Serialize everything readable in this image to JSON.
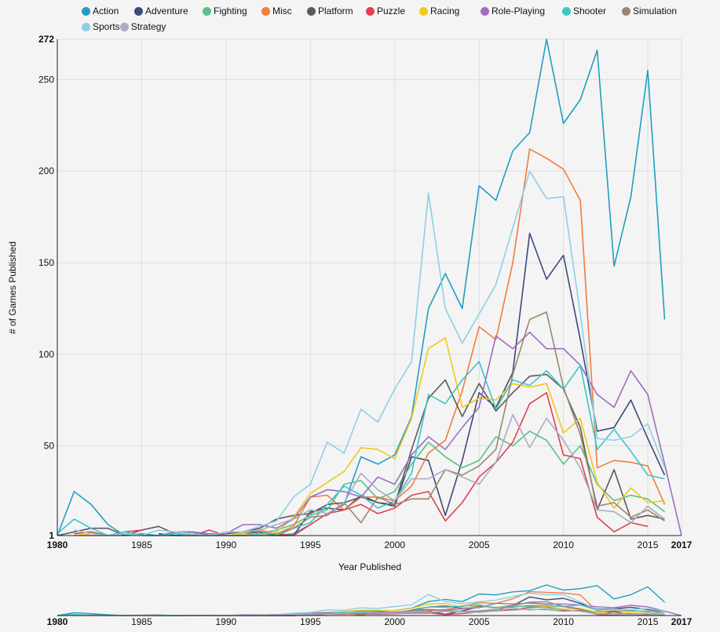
{
  "chart_data": {
    "type": "line",
    "title": "",
    "xlabel": "Year Published",
    "ylabel": "# of Games Published",
    "xlim": [
      1980,
      2017
    ],
    "ylim": [
      1,
      272
    ],
    "x_ticks": [
      1980,
      1985,
      1990,
      1995,
      2000,
      2005,
      2010,
      2015,
      2017
    ],
    "y_ticks": [
      1,
      50,
      100,
      150,
      200,
      250,
      272
    ],
    "grid": true,
    "legend_position": "top",
    "x": [
      1980,
      1981,
      1982,
      1983,
      1984,
      1985,
      1986,
      1987,
      1988,
      1989,
      1990,
      1991,
      1992,
      1993,
      1994,
      1995,
      1996,
      1997,
      1998,
      1999,
      2000,
      2001,
      2002,
      2003,
      2004,
      2005,
      2006,
      2007,
      2008,
      2009,
      2010,
      2011,
      2012,
      2013,
      2014,
      2015,
      2016,
      2017
    ],
    "series": [
      {
        "name": "Action",
        "color": "#1f9fc0",
        "values": [
          1,
          25,
          18,
          7,
          1,
          2,
          1,
          1,
          2,
          2,
          1,
          1,
          2,
          1,
          2,
          7,
          13,
          18,
          44,
          40,
          45,
          66,
          125,
          144,
          125,
          192,
          184,
          211,
          221,
          272,
          226,
          239,
          266,
          148,
          186,
          255,
          119,
          null
        ]
      },
      {
        "name": "Adventure",
        "color": "#3b4a7a",
        "values": [
          null,
          null,
          null,
          1,
          null,
          null,
          2,
          1,
          1,
          1,
          1,
          2,
          3,
          1,
          1,
          14,
          16,
          15,
          23,
          19,
          17,
          44,
          42,
          12,
          42,
          79,
          71,
          90,
          166,
          141,
          154,
          108,
          58,
          60,
          75,
          54,
          34,
          null
        ]
      },
      {
        "name": "Fighting",
        "color": "#56c28a",
        "values": [
          1,
          null,
          null,
          null,
          null,
          1,
          null,
          2,
          null,
          1,
          null,
          1,
          2,
          4,
          7,
          12,
          15,
          29,
          31,
          21,
          25,
          40,
          52,
          44,
          38,
          42,
          55,
          50,
          58,
          53,
          40,
          50,
          29,
          20,
          23,
          21,
          14,
          null
        ]
      },
      {
        "name": "Misc",
        "color": "#f27d3c",
        "values": [
          null,
          1,
          1,
          1,
          1,
          null,
          null,
          1,
          null,
          1,
          null,
          2,
          4,
          2,
          6,
          22,
          23,
          15,
          22,
          22,
          20,
          28,
          46,
          53,
          80,
          115,
          108,
          150,
          212,
          207,
          201,
          184,
          38,
          42,
          41,
          39,
          18,
          null
        ]
      },
      {
        "name": "Platform",
        "color": "#5a5a5a",
        "values": [
          1,
          3,
          5,
          5,
          1,
          4,
          6,
          2,
          3,
          1,
          2,
          3,
          5,
          10,
          12,
          13,
          18,
          19,
          22,
          19,
          18,
          48,
          76,
          86,
          66,
          84,
          69,
          79,
          88,
          89,
          81,
          60,
          15,
          37,
          10,
          12,
          10,
          null
        ]
      },
      {
        "name": "Puzzle",
        "color": "#e0404f",
        "values": [
          null,
          2,
          3,
          1,
          3,
          4,
          null,
          null,
          1,
          4,
          1,
          1,
          2,
          2,
          1,
          7,
          13,
          15,
          18,
          13,
          16,
          23,
          25,
          9,
          19,
          33,
          41,
          52,
          73,
          79,
          45,
          43,
          11,
          3,
          8,
          6,
          null,
          null
        ]
      },
      {
        "name": "Racing",
        "color": "#f2c81a",
        "values": [
          null,
          1,
          2,
          null,
          3,
          null,
          null,
          2,
          2,
          1,
          1,
          2,
          1,
          3,
          11,
          24,
          30,
          36,
          49,
          48,
          43,
          65,
          103,
          109,
          71,
          76,
          75,
          84,
          82,
          84,
          57,
          65,
          30,
          16,
          27,
          19,
          20,
          null
        ]
      },
      {
        "name": "Role-Playing",
        "color": "#a06cc0",
        "values": [
          null,
          null,
          null,
          null,
          null,
          null,
          1,
          3,
          3,
          2,
          2,
          7,
          7,
          5,
          10,
          22,
          26,
          25,
          22,
          33,
          29,
          45,
          55,
          48,
          60,
          71,
          110,
          103,
          112,
          103,
          103,
          94,
          78,
          71,
          91,
          78,
          40,
          1
        ]
      },
      {
        "name": "Shooter",
        "color": "#3ec6c8",
        "values": [
          2,
          10,
          5,
          1,
          3,
          1,
          1,
          2,
          1,
          1,
          1,
          1,
          2,
          2,
          5,
          8,
          18,
          28,
          23,
          16,
          20,
          35,
          78,
          73,
          86,
          96,
          70,
          86,
          83,
          91,
          81,
          94,
          48,
          59,
          47,
          34,
          32,
          null
        ]
      },
      {
        "name": "Simulation",
        "color": "#9c8670",
        "values": [
          null,
          1,
          null,
          1,
          null,
          1,
          1,
          null,
          1,
          null,
          null,
          1,
          1,
          1,
          5,
          11,
          12,
          19,
          8,
          22,
          18,
          21,
          21,
          37,
          34,
          39,
          48,
          89,
          119,
          123,
          82,
          56,
          17,
          19,
          11,
          15,
          9,
          null
        ]
      },
      {
        "name": "Sports",
        "color": "#8ecfe6",
        "values": [
          null,
          4,
          2,
          1,
          2,
          1,
          4,
          3,
          2,
          1,
          3,
          3,
          6,
          9,
          22,
          29,
          52,
          46,
          70,
          63,
          81,
          96,
          188,
          125,
          106,
          122,
          138,
          169,
          200,
          185,
          186,
          122,
          54,
          53,
          55,
          62,
          38,
          null
        ]
      },
      {
        "name": "Strategy",
        "color": "#a8aec0",
        "values": [
          null,
          null,
          null,
          null,
          null,
          null,
          null,
          null,
          null,
          null,
          null,
          3,
          4,
          7,
          10,
          15,
          13,
          19,
          35,
          26,
          20,
          32,
          32,
          37,
          33,
          29,
          41,
          67,
          49,
          65,
          53,
          38,
          15,
          14,
          8,
          17,
          10,
          null
        ]
      }
    ]
  }
}
